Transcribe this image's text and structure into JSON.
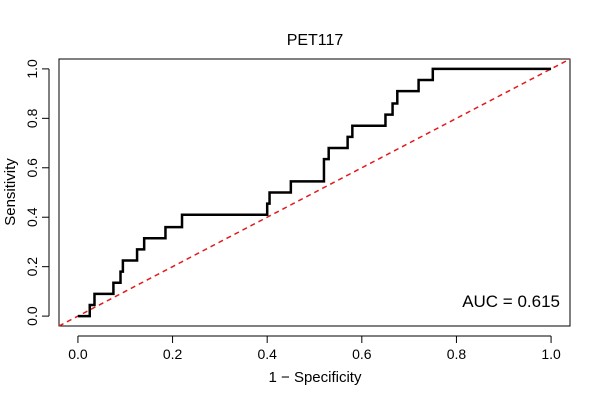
{
  "chart_data": {
    "type": "line",
    "title": "PET117",
    "xlabel": "1 − Specificity",
    "ylabel": "Sensitivity",
    "xlim": [
      -0.04,
      1.04
    ],
    "ylim": [
      -0.04,
      1.04
    ],
    "x_ticks": [
      "0.0",
      "0.2",
      "0.4",
      "0.6",
      "0.8",
      "1.0"
    ],
    "y_ticks": [
      "0.0",
      "0.2",
      "0.4",
      "0.6",
      "0.8",
      "1.0"
    ],
    "x_tick_values": [
      0,
      0.2,
      0.4,
      0.6,
      0.8,
      1.0
    ],
    "y_tick_values": [
      0,
      0.2,
      0.4,
      0.6,
      0.8,
      1.0
    ],
    "grid": false,
    "annotation": "AUC = 0.615",
    "series": [
      {
        "role": "roc-curve",
        "color": "#000000",
        "style": "step",
        "x": [
          0.0,
          0.02,
          0.025,
          0.025,
          0.035,
          0.035,
          0.075,
          0.075,
          0.09,
          0.09,
          0.095,
          0.095,
          0.125,
          0.125,
          0.14,
          0.14,
          0.185,
          0.185,
          0.22,
          0.22,
          0.4,
          0.4,
          0.405,
          0.405,
          0.45,
          0.45,
          0.52,
          0.52,
          0.53,
          0.53,
          0.57,
          0.57,
          0.58,
          0.58,
          0.65,
          0.65,
          0.665,
          0.665,
          0.675,
          0.675,
          0.72,
          0.72,
          0.735,
          0.735,
          0.75,
          0.75,
          1.0
        ],
        "y": [
          0.0,
          0.0,
          0.0,
          0.045,
          0.045,
          0.09,
          0.09,
          0.135,
          0.135,
          0.18,
          0.18,
          0.225,
          0.225,
          0.27,
          0.27,
          0.315,
          0.315,
          0.36,
          0.36,
          0.41,
          0.41,
          0.455,
          0.455,
          0.5,
          0.5,
          0.545,
          0.545,
          0.635,
          0.635,
          0.68,
          0.68,
          0.725,
          0.725,
          0.77,
          0.77,
          0.815,
          0.815,
          0.86,
          0.86,
          0.91,
          0.91,
          0.955,
          0.955,
          0.955,
          0.955,
          1.0,
          1.0
        ]
      },
      {
        "role": "reference-diagonal",
        "color": "#e31a1c",
        "style": "dashed",
        "x": [
          -0.04,
          1.04
        ],
        "y": [
          -0.04,
          1.04
        ]
      }
    ]
  }
}
